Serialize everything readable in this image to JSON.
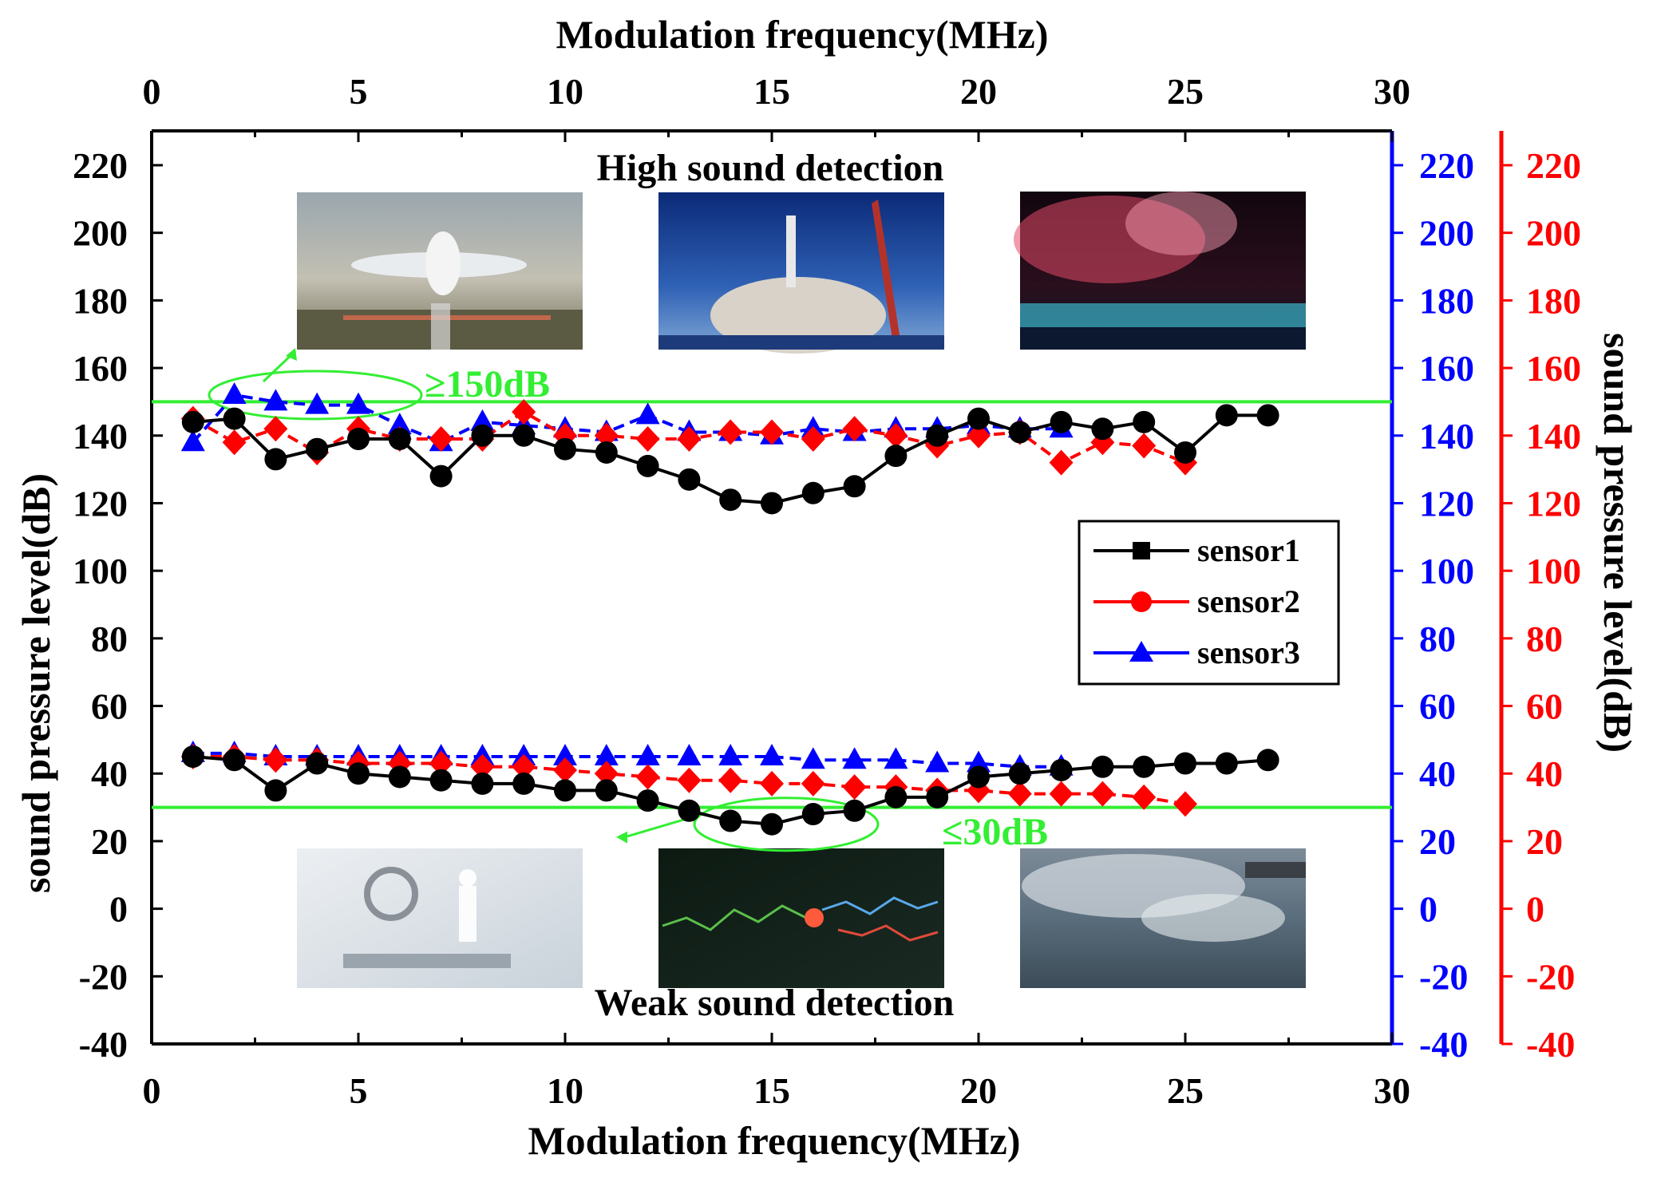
{
  "chart_data": {
    "type": "line",
    "title_top_axis": "Modulation frequency(MHz)",
    "xlabel": "Modulation frequency(MHz)",
    "ylabel_left": "sound pressure level(dB)",
    "ylabel_right": "sound pressure level(dB)",
    "xlim": [
      0,
      30
    ],
    "ylim": [
      -40,
      230
    ],
    "x_ticks": [
      "0",
      "5",
      "10",
      "15",
      "20",
      "25",
      "30"
    ],
    "y_ticks": [
      "-40",
      "-20",
      "0",
      "20",
      "40",
      "60",
      "80",
      "100",
      "120",
      "140",
      "160",
      "180",
      "200",
      "220"
    ],
    "y_tick_values": [
      -40,
      -20,
      0,
      20,
      40,
      60,
      80,
      100,
      120,
      140,
      160,
      180,
      200,
      220
    ],
    "x_tick_values": [
      0,
      5,
      10,
      15,
      20,
      25,
      30
    ],
    "text_high": "High sound detection",
    "text_weak": "Weak sound detection",
    "threshold_high": {
      "value": 150,
      "label": "≥150dB"
    },
    "threshold_low": {
      "value": 30,
      "label": "≤30dB"
    },
    "colors": {
      "sensor1": "#000000",
      "sensor2": "#ff0000",
      "sensor3": "#0000ff",
      "threshold": "#33ee33",
      "blue_axis": "#0000ff",
      "red_axis": "#ff0000"
    },
    "legend": [
      "sensor1",
      "sensor2",
      "sensor3"
    ],
    "series": [
      {
        "name": "sensor1",
        "marker": "circle",
        "group": "high",
        "x": [
          1,
          2,
          3,
          4,
          5,
          6,
          7,
          8,
          9,
          10,
          11,
          12,
          13,
          14,
          15,
          16,
          17,
          18,
          19,
          20,
          21,
          22,
          23,
          24,
          25,
          26,
          27
        ],
        "values": [
          144,
          145,
          133,
          136,
          139,
          139,
          128,
          140,
          140,
          136,
          135,
          131,
          127,
          121,
          120,
          123,
          125,
          134,
          140,
          145,
          141,
          144,
          142,
          144,
          135,
          146,
          146
        ]
      },
      {
        "name": "sensor2",
        "marker": "diamond",
        "group": "high",
        "x": [
          1,
          2,
          3,
          4,
          5,
          6,
          7,
          8,
          9,
          10,
          11,
          12,
          13,
          14,
          15,
          16,
          17,
          18,
          19,
          20,
          21,
          22,
          23,
          24,
          25
        ],
        "values": [
          145,
          138,
          142,
          135,
          142,
          139,
          139,
          139,
          147,
          140,
          140,
          139,
          139,
          141,
          141,
          139,
          142,
          140,
          137,
          140,
          141,
          132,
          138,
          137,
          132
        ]
      },
      {
        "name": "sensor3",
        "marker": "triangle",
        "group": "high",
        "x": [
          1,
          2,
          3,
          4,
          5,
          6,
          7,
          8,
          9,
          10,
          11,
          12,
          13,
          14,
          15,
          16,
          17,
          18,
          19,
          20,
          21,
          22
        ],
        "values": [
          138,
          152,
          150,
          149,
          149,
          143,
          138,
          144,
          143,
          142,
          141,
          146,
          141,
          141,
          140,
          142,
          141,
          142,
          142,
          143,
          142,
          142
        ]
      },
      {
        "name": "sensor1",
        "marker": "circle",
        "group": "weak",
        "x": [
          1,
          2,
          3,
          4,
          5,
          6,
          7,
          8,
          9,
          10,
          11,
          12,
          13,
          14,
          15,
          16,
          17,
          18,
          19,
          20,
          21,
          22,
          23,
          24,
          25,
          26,
          27
        ],
        "values": [
          45,
          44,
          35,
          43,
          40,
          39,
          38,
          37,
          37,
          35,
          35,
          32,
          29,
          26,
          25,
          28,
          29,
          33,
          33,
          39,
          40,
          41,
          42,
          42,
          43,
          43,
          44
        ]
      },
      {
        "name": "sensor2",
        "marker": "diamond",
        "group": "weak",
        "x": [
          1,
          2,
          3,
          4,
          5,
          6,
          7,
          8,
          9,
          10,
          11,
          12,
          13,
          14,
          15,
          16,
          17,
          18,
          19,
          20,
          21,
          22,
          23,
          24,
          25
        ],
        "values": [
          45,
          45,
          44,
          44,
          43,
          43,
          43,
          42,
          42,
          41,
          40,
          39,
          38,
          38,
          37,
          37,
          36,
          36,
          35,
          35,
          34,
          34,
          34,
          33,
          31
        ]
      },
      {
        "name": "sensor3",
        "marker": "triangle",
        "group": "weak",
        "x": [
          1,
          2,
          3,
          4,
          5,
          6,
          7,
          8,
          9,
          10,
          11,
          12,
          13,
          14,
          15,
          16,
          17,
          18,
          19,
          20,
          21,
          22
        ],
        "values": [
          46,
          46,
          45,
          45,
          45,
          45,
          45,
          45,
          45,
          45,
          45,
          45,
          45,
          45,
          45,
          44,
          44,
          44,
          43,
          43,
          42,
          42
        ]
      }
    ],
    "photos": [
      {
        "name": "airplane-photo",
        "group": "high"
      },
      {
        "name": "rocket-launch-photo",
        "group": "high"
      },
      {
        "name": "fireworks-photo",
        "group": "high"
      },
      {
        "name": "medical-stethoscope-photo",
        "group": "weak"
      },
      {
        "name": "sound-wave-photo",
        "group": "weak"
      },
      {
        "name": "ocean-wave-photo",
        "group": "weak"
      }
    ]
  }
}
